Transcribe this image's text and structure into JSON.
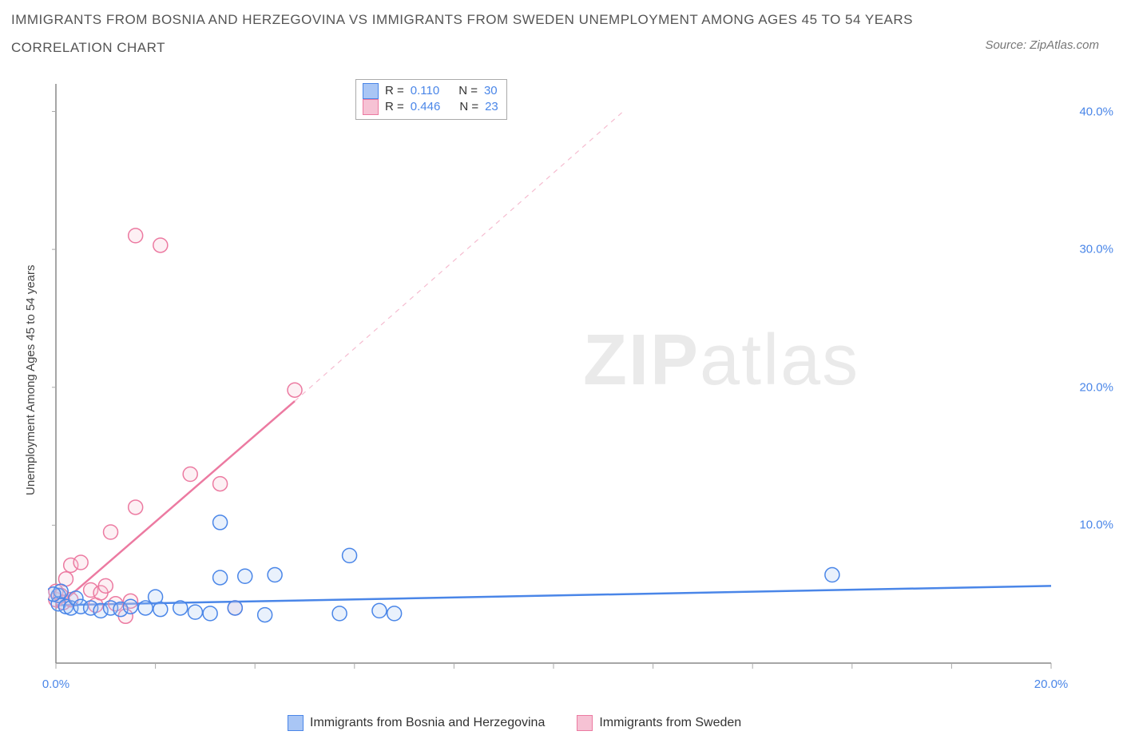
{
  "title_line1": "IMMIGRANTS FROM BOSNIA AND HERZEGOVINA VS IMMIGRANTS FROM SWEDEN UNEMPLOYMENT AMONG AGES 45 TO 54 YEARS",
  "title_line2": "CORRELATION CHART",
  "source_text": "Source: ZipAtlas.com",
  "y_axis_label": "Unemployment Among Ages 45 to 54 years",
  "watermark_bold": "ZIP",
  "watermark_rest": "atlas",
  "chart": {
    "type": "scatter",
    "background_color": "#ffffff",
    "axis_color": "#888888",
    "tick_color": "#aaaaaa",
    "xlim": [
      0,
      20
    ],
    "ylim": [
      0,
      42
    ],
    "x_ticks": [
      0,
      2,
      4,
      6,
      8,
      10,
      12,
      14,
      16,
      18,
      20
    ],
    "x_tick_labels": [
      "0.0%",
      "",
      "",
      "",
      "",
      "",
      "",
      "",
      "",
      "",
      "20.0%"
    ],
    "y_ticks": [
      10,
      20,
      30,
      40
    ],
    "y_tick_labels": [
      "10.0%",
      "20.0%",
      "30.0%",
      "40.0%"
    ],
    "marker_radius": 9,
    "marker_stroke_width": 1.5,
    "marker_fill_opacity": 0.25,
    "series": [
      {
        "name": "Immigrants from Bosnia and Herzegovina",
        "color_stroke": "#4a86e8",
        "color_fill": "#a9c6f5",
        "R": "0.110",
        "N": "30",
        "trend": {
          "x1": 0,
          "y1": 4.2,
          "x2": 20,
          "y2": 5.6,
          "dash": false,
          "width": 2.5
        },
        "points": [
          [
            0.05,
            4.9
          ],
          [
            0.05,
            4.3
          ],
          [
            0.1,
            5.2
          ],
          [
            -0.05,
            5.0
          ],
          [
            0.2,
            4.1
          ],
          [
            0.3,
            4.0
          ],
          [
            0.4,
            4.7
          ],
          [
            0.5,
            4.1
          ],
          [
            0.7,
            4.0
          ],
          [
            0.9,
            3.8
          ],
          [
            1.1,
            4.0
          ],
          [
            1.3,
            3.9
          ],
          [
            1.5,
            4.1
          ],
          [
            1.8,
            4.0
          ],
          [
            2.0,
            4.8
          ],
          [
            2.1,
            3.9
          ],
          [
            2.5,
            4.0
          ],
          [
            2.8,
            3.7
          ],
          [
            3.1,
            3.6
          ],
          [
            3.3,
            6.2
          ],
          [
            3.3,
            10.2
          ],
          [
            3.6,
            4.0
          ],
          [
            3.8,
            6.3
          ],
          [
            4.2,
            3.5
          ],
          [
            4.4,
            6.4
          ],
          [
            5.7,
            3.6
          ],
          [
            5.9,
            7.8
          ],
          [
            6.5,
            3.8
          ],
          [
            6.8,
            3.6
          ],
          [
            15.6,
            6.4
          ]
        ]
      },
      {
        "name": "Immigrants from Sweden",
        "color_stroke": "#ec7aa1",
        "color_fill": "#f6c2d4",
        "R": "0.446",
        "N": "23",
        "trend": {
          "x1": 0,
          "y1": 4.0,
          "x2": 4.8,
          "y2": 19.0,
          "dash": false,
          "width": 2.5
        },
        "trend_ext": {
          "x1": 4.8,
          "y1": 19.0,
          "x2": 11.4,
          "y2": 40.0,
          "dash": true,
          "width": 1.2
        },
        "points": [
          [
            0.0,
            4.6
          ],
          [
            0.0,
            5.2
          ],
          [
            0.1,
            4.9
          ],
          [
            0.15,
            4.4
          ],
          [
            0.2,
            6.1
          ],
          [
            0.3,
            4.6
          ],
          [
            0.3,
            7.1
          ],
          [
            0.5,
            7.3
          ],
          [
            0.7,
            5.3
          ],
          [
            0.8,
            4.2
          ],
          [
            0.9,
            5.1
          ],
          [
            1.0,
            5.6
          ],
          [
            1.1,
            9.5
          ],
          [
            1.2,
            4.3
          ],
          [
            1.4,
            3.4
          ],
          [
            1.5,
            4.5
          ],
          [
            1.6,
            11.3
          ],
          [
            1.6,
            31.0
          ],
          [
            2.1,
            30.3
          ],
          [
            2.7,
            13.7
          ],
          [
            3.3,
            13.0
          ],
          [
            3.6,
            4.0
          ],
          [
            4.8,
            19.8
          ]
        ]
      }
    ]
  },
  "stats_box": {
    "rows": [
      {
        "swatch_fill": "#a9c6f5",
        "swatch_stroke": "#4a86e8",
        "r_label": "R =",
        "r_val": "0.110",
        "n_label": "N =",
        "n_val": "30"
      },
      {
        "swatch_fill": "#f6c2d4",
        "swatch_stroke": "#ec7aa1",
        "r_label": "R =",
        "r_val": "0.446",
        "n_label": "N =",
        "n_val": "23"
      }
    ]
  },
  "legend": {
    "items": [
      {
        "swatch_fill": "#a9c6f5",
        "swatch_stroke": "#4a86e8",
        "label": "Immigrants from Bosnia and Herzegovina"
      },
      {
        "swatch_fill": "#f6c2d4",
        "swatch_stroke": "#ec7aa1",
        "label": "Immigrants from Sweden"
      }
    ]
  }
}
